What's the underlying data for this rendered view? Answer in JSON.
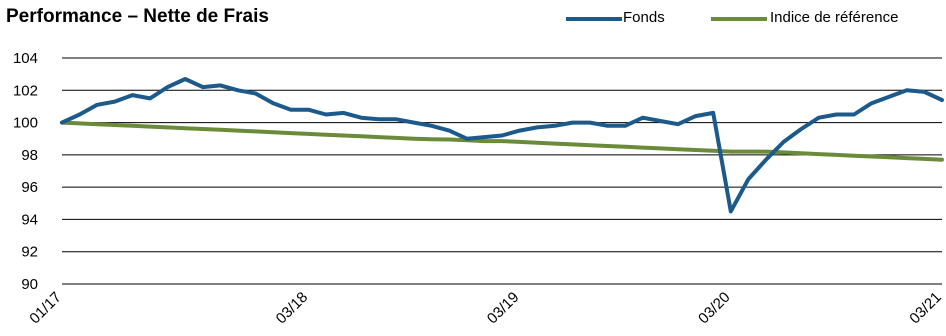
{
  "chart_data": {
    "type": "line",
    "title": "Performance – Nette de Frais",
    "xlabel": "",
    "ylabel": "",
    "ylim": [
      90,
      104
    ],
    "yticks": [
      "90",
      "92",
      "94",
      "96",
      "98",
      "100",
      "102",
      "104"
    ],
    "xticks": [
      "01/17",
      "03/18",
      "03/19",
      "03/20",
      "03/21"
    ],
    "grid": "horizontal",
    "legend": "top-right",
    "n_points": 51,
    "series": [
      {
        "name": "Fonds",
        "color": "#1b5a8a",
        "values": [
          100.0,
          100.5,
          101.1,
          101.3,
          101.7,
          101.5,
          102.2,
          102.7,
          102.2,
          102.3,
          102.0,
          101.8,
          101.2,
          100.8,
          100.8,
          100.5,
          100.6,
          100.3,
          100.2,
          100.2,
          100.0,
          99.8,
          99.5,
          99.0,
          99.1,
          99.2,
          99.5,
          99.7,
          99.8,
          100.0,
          100.0,
          99.8,
          99.8,
          100.3,
          100.1,
          99.9,
          100.4,
          100.6,
          94.5,
          96.5,
          97.7,
          98.8,
          99.6,
          100.3,
          100.5,
          100.5,
          101.2,
          101.6,
          102.0,
          101.9,
          101.4
        ]
      },
      {
        "name": "Indice de référence",
        "color": "#6a8b3a",
        "values": [
          100.0,
          99.95,
          99.9,
          99.85,
          99.8,
          99.75,
          99.7,
          99.65,
          99.6,
          99.55,
          99.5,
          99.45,
          99.4,
          99.35,
          99.3,
          99.25,
          99.2,
          99.15,
          99.1,
          99.05,
          99.0,
          98.97,
          98.95,
          98.9,
          98.85,
          98.85,
          98.8,
          98.75,
          98.7,
          98.65,
          98.6,
          98.55,
          98.5,
          98.45,
          98.4,
          98.35,
          98.3,
          98.25,
          98.2,
          98.2,
          98.2,
          98.15,
          98.1,
          98.05,
          98.0,
          97.95,
          97.9,
          97.85,
          97.8,
          97.75,
          97.7
        ]
      }
    ]
  }
}
